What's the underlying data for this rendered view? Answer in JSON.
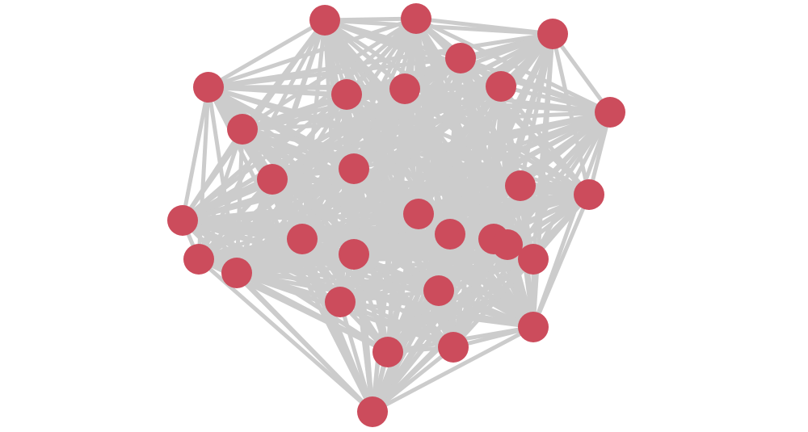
{
  "graph": {
    "type": "network",
    "node_count": 30,
    "edge_style": "dense, nearly complete graph",
    "colors": {
      "node": "#cc4c5c",
      "edge": "#cccccc",
      "background": "#ffffff"
    }
  }
}
